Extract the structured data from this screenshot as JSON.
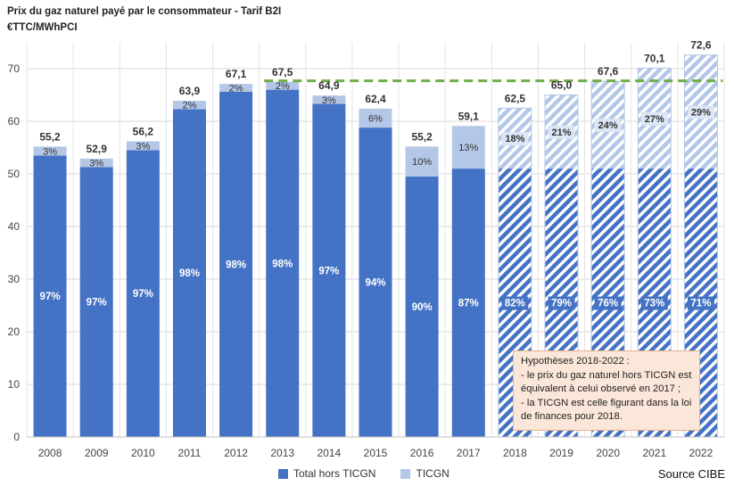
{
  "title": "Prix du gaz naturel payé par le consommateur - Tarif B2I",
  "unit": "€TTC/MWhPCI",
  "source": "Source CIBE",
  "note": {
    "lines": [
      "Hypothèses 2018-2022 :",
      "- le prix du gaz naturel hors TICGN est",
      "équivalent à celui observé en 2017 ;",
      "- la TICGN est celle figurant dans la loi",
      "de finances pour 2018."
    ]
  },
  "colors": {
    "base": "#4472c4",
    "ticgn": "#b4c7e7",
    "dashed": "#70ad47",
    "hatch_bg": "#ffffff"
  },
  "chart_data": {
    "type": "bar",
    "stacked": true,
    "categories": [
      "2008",
      "2009",
      "2010",
      "2011",
      "2012",
      "2013",
      "2014",
      "2015",
      "2016",
      "2017",
      "2018",
      "2019",
      "2020",
      "2021",
      "2022"
    ],
    "totals": [
      55.2,
      52.9,
      56.2,
      63.9,
      67.1,
      67.5,
      64.9,
      62.4,
      55.2,
      59.1,
      62.5,
      65.0,
      67.6,
      70.1,
      72.6
    ],
    "total_labels": [
      "55,2",
      "52,9",
      "56,2",
      "63,9",
      "67,1",
      "67,5",
      "64,9",
      "62,4",
      "55,2",
      "59,1",
      "62,5",
      "65,0",
      "67,6",
      "70,1",
      "72,6"
    ],
    "series": [
      {
        "name": "Total hors TICGN",
        "pct_labels": [
          "97%",
          "97%",
          "97%",
          "98%",
          "98%",
          "98%",
          "97%",
          "94%",
          "90%",
          "87%",
          "82%",
          "79%",
          "76%",
          "73%",
          "71%"
        ]
      },
      {
        "name": "TICGN",
        "pct_labels": [
          "3%",
          "3%",
          "3%",
          "2%",
          "2%",
          "2%",
          "3%",
          "6%",
          "10%",
          "13%",
          "18%",
          "21%",
          "24%",
          "27%",
          "29%"
        ]
      }
    ],
    "base_values": [
      53.5,
      51.3,
      54.5,
      62.3,
      65.6,
      66.0,
      63.3,
      58.8,
      49.5,
      51.0,
      51.0,
      51.0,
      51.0,
      51.0,
      51.0
    ],
    "projected_from": "2018",
    "reference_line": {
      "value": 67.7,
      "from": "2013",
      "to": "2022"
    },
    "ylim": [
      0,
      75
    ],
    "yticks": [
      0,
      10,
      20,
      30,
      40,
      50,
      60,
      70
    ],
    "grid": true,
    "legend_position": "bottom"
  }
}
